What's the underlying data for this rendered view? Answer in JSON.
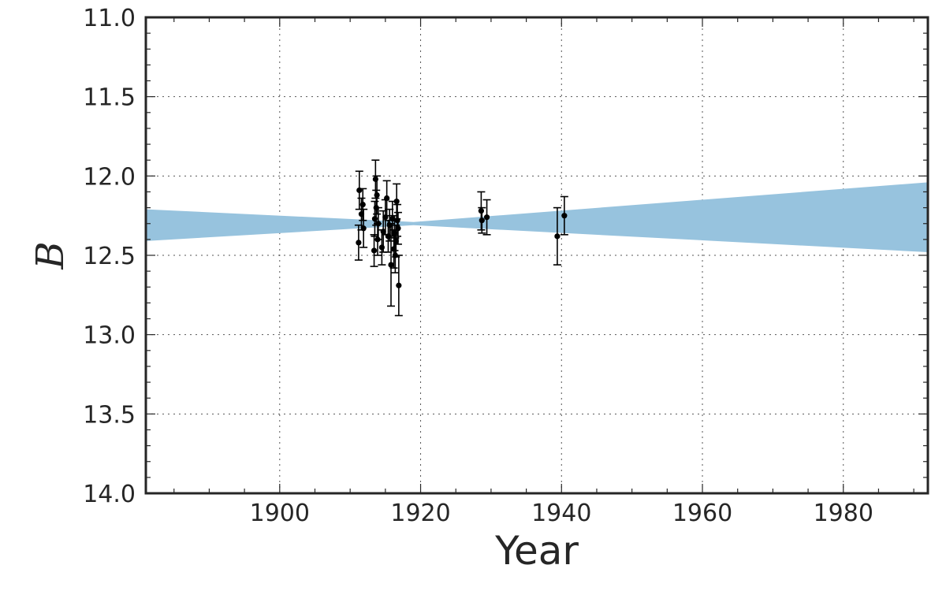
{
  "chart_data": {
    "type": "scatter",
    "title": "",
    "xlabel": "Year",
    "ylabel": "B",
    "xlim": [
      1881,
      1992
    ],
    "ylim": [
      14.0,
      11.0
    ],
    "y_inverted": true,
    "grid": true,
    "x_ticks": [
      1900,
      1920,
      1940,
      1960,
      1980
    ],
    "x_tick_labels": [
      "1900",
      "1920",
      "1940",
      "1960",
      "1980"
    ],
    "y_ticks": [
      11.0,
      11.5,
      12.0,
      12.5,
      13.0,
      13.5,
      14.0
    ],
    "y_tick_labels": [
      "11.0",
      "11.5",
      "12.0",
      "12.5",
      "13.0",
      "13.5",
      "14.0"
    ],
    "band": {
      "color": "#97c3de",
      "x": [
        1881,
        1919,
        1992
      ],
      "lower": [
        12.21,
        12.29,
        12.04
      ],
      "upper": [
        12.41,
        12.31,
        12.48
      ]
    },
    "points": [
      {
        "x": 1911.2,
        "y": 12.42,
        "err": 0.11
      },
      {
        "x": 1911.3,
        "y": 12.09,
        "err": 0.12
      },
      {
        "x": 1911.6,
        "y": 12.24,
        "err": 0.1
      },
      {
        "x": 1911.8,
        "y": 12.18,
        "err": 0.1
      },
      {
        "x": 1911.9,
        "y": 12.33,
        "err": 0.12
      },
      {
        "x": 1913.4,
        "y": 12.47,
        "err": 0.1
      },
      {
        "x": 1913.5,
        "y": 12.27,
        "err": 0.11
      },
      {
        "x": 1913.6,
        "y": 12.02,
        "err": 0.12
      },
      {
        "x": 1913.7,
        "y": 12.2,
        "err": 0.11
      },
      {
        "x": 1913.8,
        "y": 12.12,
        "err": 0.12
      },
      {
        "x": 1913.9,
        "y": 12.4,
        "err": 0.1
      },
      {
        "x": 1914.0,
        "y": 12.3,
        "err": 0.1
      },
      {
        "x": 1914.5,
        "y": 12.45,
        "err": 0.11
      },
      {
        "x": 1914.7,
        "y": 12.35,
        "err": 0.13
      },
      {
        "x": 1915.0,
        "y": 12.26,
        "err": 0.11
      },
      {
        "x": 1915.2,
        "y": 12.14,
        "err": 0.11
      },
      {
        "x": 1915.4,
        "y": 12.38,
        "err": 0.1
      },
      {
        "x": 1915.6,
        "y": 12.31,
        "err": 0.1
      },
      {
        "x": 1915.8,
        "y": 12.56,
        "err": 0.26
      },
      {
        "x": 1916.0,
        "y": 12.27,
        "err": 0.11
      },
      {
        "x": 1916.2,
        "y": 12.46,
        "err": 0.12
      },
      {
        "x": 1916.3,
        "y": 12.36,
        "err": 0.11
      },
      {
        "x": 1916.4,
        "y": 12.5,
        "err": 0.11
      },
      {
        "x": 1916.5,
        "y": 12.41,
        "err": 0.1
      },
      {
        "x": 1916.6,
        "y": 12.16,
        "err": 0.11
      },
      {
        "x": 1916.7,
        "y": 12.28,
        "err": 0.1
      },
      {
        "x": 1916.8,
        "y": 12.33,
        "err": 0.1
      },
      {
        "x": 1916.9,
        "y": 12.69,
        "err": 0.19
      },
      {
        "x": 1928.6,
        "y": 12.22,
        "err": 0.12
      },
      {
        "x": 1928.7,
        "y": 12.28,
        "err": 0.08
      },
      {
        "x": 1929.4,
        "y": 12.26,
        "err": 0.11
      },
      {
        "x": 1939.4,
        "y": 12.38,
        "err": 0.18
      },
      {
        "x": 1940.4,
        "y": 12.25,
        "err": 0.12
      }
    ]
  }
}
